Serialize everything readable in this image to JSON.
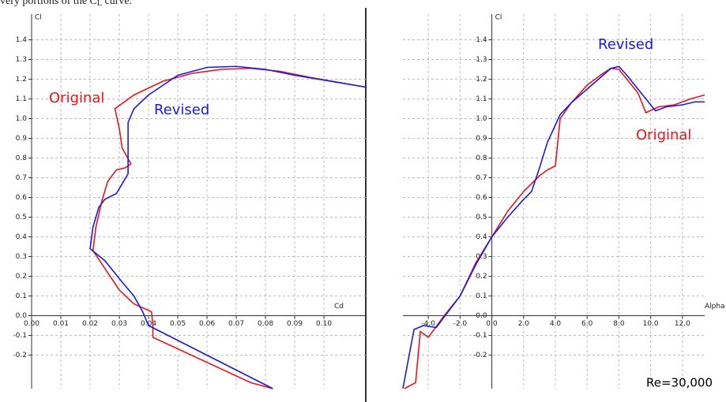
{
  "caption": {
    "before": "very portions of the C",
    "sub": "L",
    "after": " curve."
  },
  "chart_data": [
    {
      "type": "line",
      "x_label": "Cd",
      "y_label": "Cl",
      "grid": true,
      "xlim": [
        0,
        0.1143
      ],
      "ylim": [
        -0.37,
        1.53
      ],
      "xticks": [
        {
          "value": 0,
          "label": "0.00"
        },
        {
          "value": 0.01,
          "label": "0.01"
        },
        {
          "value": 0.02,
          "label": "0.02"
        },
        {
          "value": 0.03,
          "label": "0.03"
        },
        {
          "value": 0.04,
          "label": "0.04"
        },
        {
          "value": 0.05,
          "label": "0.05"
        },
        {
          "value": 0.06,
          "label": "0.06"
        },
        {
          "value": 0.07,
          "label": "0.07"
        },
        {
          "value": 0.08,
          "label": "0.08"
        },
        {
          "value": 0.09,
          "label": "0.09"
        },
        {
          "value": 0.1,
          "label": "0.10"
        }
      ],
      "yticks": [
        1.4,
        1.3,
        1.2,
        1.1,
        {
          "value": 1,
          "label": "1.0"
        },
        0.9,
        0.8,
        0.7,
        0.6,
        0.5,
        0.4,
        0.3,
        0.2,
        0.1,
        {
          "value": 0,
          "label": "0.0"
        },
        -0.1,
        -0.2
      ],
      "series": [
        {
          "name": "Original",
          "color": "#e8141b",
          "x": [
            0.0825,
            0.075,
            0.0415,
            0.0415,
            0.041,
            0.035,
            0.03,
            0.021,
            0.022,
            0.024,
            0.026,
            0.029,
            0.032,
            0.034,
            0.031,
            0.03,
            0.0285,
            0.035,
            0.045,
            0.055,
            0.065,
            0.075,
            0.085,
            0.095,
            0.1143
          ],
          "values": [
            -0.37,
            -0.34,
            -0.11,
            -0.05,
            0.02,
            0.06,
            0.13,
            0.33,
            0.45,
            0.58,
            0.68,
            0.74,
            0.75,
            0.77,
            0.85,
            0.95,
            1.05,
            1.12,
            1.19,
            1.23,
            1.25,
            1.255,
            1.24,
            1.21,
            1.16
          ]
        },
        {
          "name": "Revised",
          "color": "#1a1ae0",
          "x": [
            0.0825,
            0.04,
            0.038,
            0.035,
            0.031,
            0.025,
            0.02,
            0.021,
            0.023,
            0.025,
            0.029,
            0.033,
            0.033,
            0.035,
            0.04,
            0.05,
            0.06,
            0.07,
            0.08,
            0.09,
            0.1143
          ],
          "values": [
            -0.37,
            -0.05,
            0.02,
            0.1,
            0.17,
            0.28,
            0.34,
            0.45,
            0.55,
            0.59,
            0.62,
            0.72,
            0.98,
            1.05,
            1.12,
            1.22,
            1.26,
            1.265,
            1.25,
            1.22,
            1.16
          ]
        }
      ]
    },
    {
      "type": "line",
      "x_label": "Alpha",
      "y_label": "Cl",
      "grid": true,
      "note": "Re=30,000",
      "xlim": [
        -5.6,
        13.4
      ],
      "ylim": [
        -0.37,
        1.53
      ],
      "xticks": [
        {
          "value": -4,
          "label": "-4.0"
        },
        {
          "value": -2,
          "label": "-2.0"
        },
        {
          "value": 0,
          "label": "0.0"
        },
        {
          "value": 2,
          "label": "2.0"
        },
        {
          "value": 4,
          "label": "4.0"
        },
        {
          "value": 6,
          "label": "6.0"
        },
        {
          "value": 8,
          "label": "8.0"
        },
        {
          "value": 10,
          "label": "10.0"
        },
        {
          "value": 12,
          "label": "12.0"
        }
      ],
      "yticks": [
        1.4,
        1.3,
        1.2,
        1.1,
        {
          "value": 1,
          "label": "1.0"
        },
        0.9,
        0.8,
        0.7,
        0.6,
        0.5,
        0.4,
        0.3,
        0.2,
        0.1,
        {
          "value": 0,
          "label": "0.0"
        },
        -0.1,
        -0.2
      ],
      "series": [
        {
          "name": "Original",
          "color": "#e8141b",
          "x": [
            -5.5,
            -4.8,
            -4.5,
            -4,
            -3,
            -2,
            -1,
            0,
            1,
            2,
            3,
            3.5,
            4,
            4.3,
            5,
            6,
            7,
            7.5,
            8,
            8.5,
            9.2,
            9.7,
            10.5,
            11.5,
            12.5,
            13.4
          ],
          "values": [
            -0.37,
            -0.34,
            -0.08,
            -0.11,
            0,
            0.1,
            0.27,
            0.4,
            0.53,
            0.63,
            0.71,
            0.74,
            0.76,
            1,
            1.08,
            1.17,
            1.23,
            1.255,
            1.25,
            1.2,
            1.13,
            1.03,
            1.06,
            1.07,
            1.1,
            1.12
          ]
        },
        {
          "name": "Revised",
          "color": "#1a1ae0",
          "x": [
            -5.6,
            -4.9,
            -4.3,
            -3.5,
            -2,
            -1,
            0,
            1,
            2,
            2.5,
            3,
            3.5,
            4.3,
            5,
            6,
            7,
            7.5,
            8,
            8.5,
            9.5,
            10.3,
            11,
            12,
            12.8,
            13.4
          ],
          "values": [
            -0.37,
            -0.07,
            -0.05,
            -0.06,
            0.1,
            0.26,
            0.4,
            0.5,
            0.59,
            0.63,
            0.75,
            0.88,
            1.02,
            1.08,
            1.15,
            1.22,
            1.255,
            1.265,
            1.22,
            1.12,
            1.04,
            1.06,
            1.07,
            1.085,
            1.085
          ]
        }
      ]
    }
  ]
}
